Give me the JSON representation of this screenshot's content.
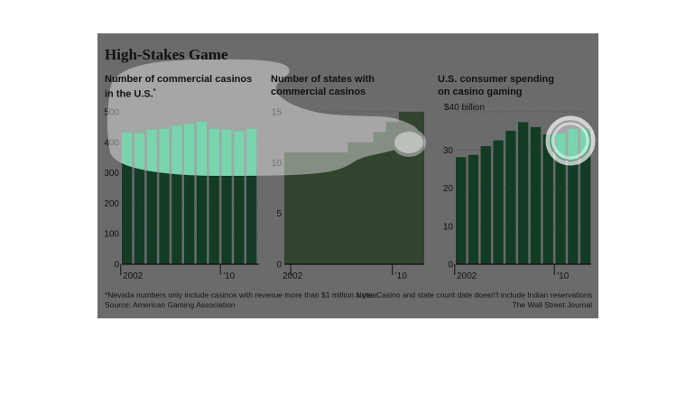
{
  "title": "High-Stakes Game",
  "chart_data": [
    {
      "type": "bar",
      "title": "Number of commercial casinos in the U.S.",
      "title_lines": [
        "Number of commercial casinos",
        "in the U.S."
      ],
      "title_mark": "*",
      "categories": [
        "2002",
        "2003",
        "2004",
        "2005",
        "2006",
        "2007",
        "2008",
        "2009",
        "2010",
        "2011",
        "2012"
      ],
      "values": [
        432,
        430,
        442,
        445,
        455,
        460,
        467,
        445,
        442,
        437,
        445
      ],
      "ylim": [
        0,
        500
      ],
      "yticks": [
        0,
        100,
        200,
        300,
        400,
        500
      ],
      "ytick_labels": [
        "0",
        "100",
        "200",
        "300",
        "400",
        "500"
      ],
      "xtick_labels": [
        {
          "label": "2002",
          "index": 0
        },
        {
          "label": "'10",
          "index": 8
        }
      ],
      "xlabel": "",
      "ylabel": ""
    },
    {
      "type": "area",
      "title": "Number of states with commercial casinos",
      "title_lines": [
        "Number of states with",
        "commercial casinos"
      ],
      "categories": [
        "2002",
        "2003",
        "2004",
        "2005",
        "2006",
        "2007",
        "2008",
        "2009",
        "2010",
        "2011",
        "2012"
      ],
      "values": [
        11,
        11,
        11,
        11,
        11,
        12,
        12,
        13,
        14,
        15,
        15
      ],
      "ylim": [
        0,
        15
      ],
      "yticks": [
        0,
        5,
        10,
        15
      ],
      "ytick_labels": [
        "0",
        "5",
        "10",
        "15"
      ],
      "xtick_labels": [
        {
          "label": "2002",
          "index": 0
        },
        {
          "label": "'10",
          "index": 8
        }
      ],
      "xlabel": "",
      "ylabel": ""
    },
    {
      "type": "bar",
      "title": "U.S. consumer spending on casino gaming",
      "title_lines": [
        "U.S. consumer spending",
        "on casino gaming"
      ],
      "categories": [
        "2002",
        "2003",
        "2004",
        "2005",
        "2006",
        "2007",
        "2008",
        "2009",
        "2010",
        "2011",
        "2012"
      ],
      "values": [
        28.1,
        28.7,
        31.0,
        32.5,
        35.0,
        37.3,
        36.0,
        34.1,
        34.3,
        35.6,
        35.6
      ],
      "ylim": [
        0,
        40
      ],
      "yticks": [
        0,
        10,
        20,
        30,
        40
      ],
      "ytick_labels": [
        "0",
        "10",
        "20",
        "30",
        "$40 billion"
      ],
      "xtick_labels": [
        {
          "label": "2002",
          "index": 0
        },
        {
          "label": "'10",
          "index": 8
        }
      ],
      "xlabel": "",
      "ylabel": "$ billion"
    }
  ],
  "footnotes": {
    "left_line1": "*Nevada numbers only include casinos with revenue more than $1 million a year.",
    "left_line2": "Source: American Gaming Association",
    "right_line1": "Note: Casino and state count date doesn't include Indian reservations",
    "right_line2": "The Wall Street Journal"
  },
  "colors": {
    "panel": "#6b6b6b",
    "bar_dark": "#123d24",
    "bar_bright": "#1dbb78",
    "area": "#32432f",
    "highlight": "#ffffff"
  }
}
